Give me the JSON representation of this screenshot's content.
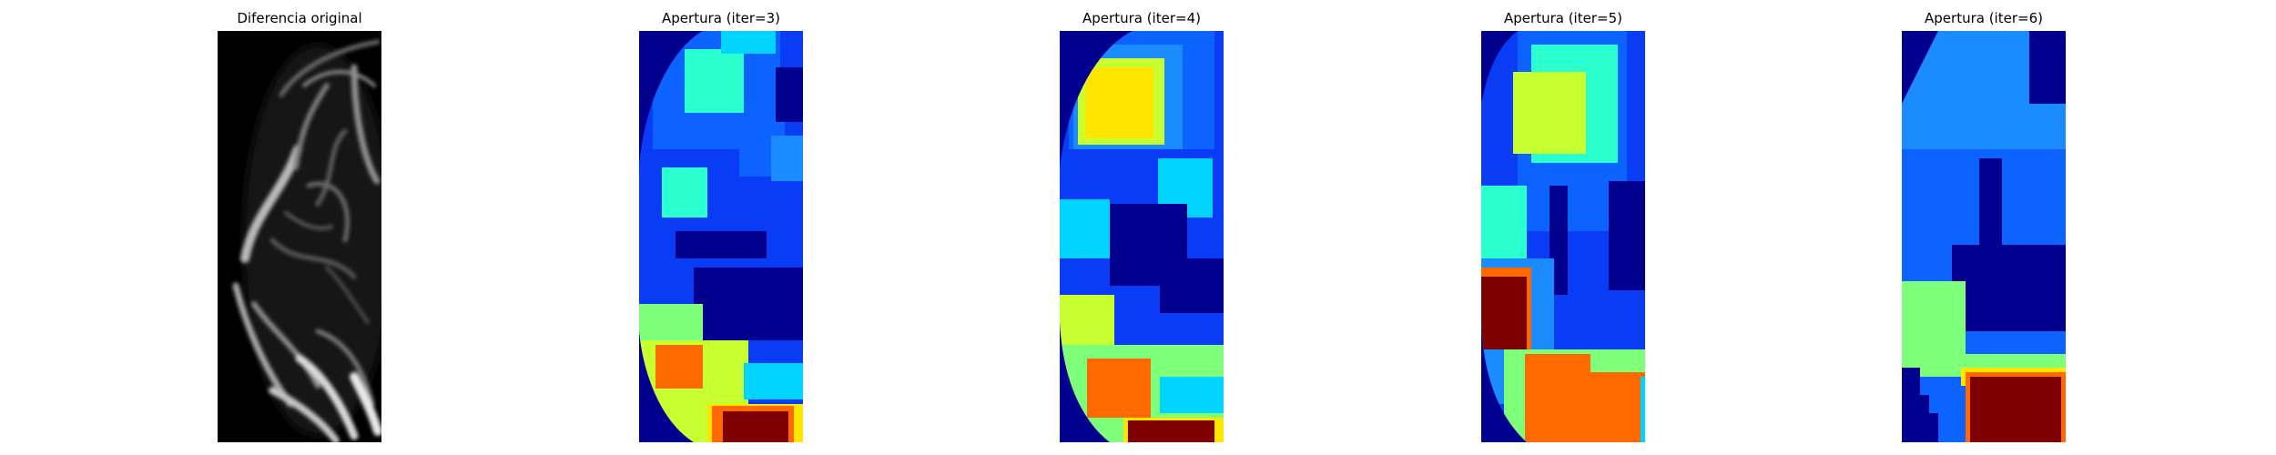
{
  "figure": {
    "panels": [
      {
        "title": "Diferencia original",
        "kind": "grayscale-difference-map"
      },
      {
        "title": "Apertura (iter=3)",
        "kind": "jet-colormap-opening"
      },
      {
        "title": "Apertura (iter=4)",
        "kind": "jet-colormap-opening"
      },
      {
        "title": "Apertura (iter=5)",
        "kind": "jet-colormap-opening"
      },
      {
        "title": "Apertura (iter=6)",
        "kind": "jet-colormap-opening"
      }
    ]
  },
  "colors": {
    "background": "#ffffff",
    "jet_dark_blue": "#00008f",
    "jet_blue": "#0a3cf5",
    "jet_mid_blue": "#0c63ff",
    "jet_sky": "#1a8cff",
    "jet_cyan": "#00d4ff",
    "jet_aqua": "#2affd0",
    "jet_green": "#7dff7a",
    "jet_yellow_green": "#c8ff30",
    "jet_yellow": "#ffe600",
    "jet_orange": "#ff6a00",
    "jet_dark_red": "#7f0000"
  }
}
